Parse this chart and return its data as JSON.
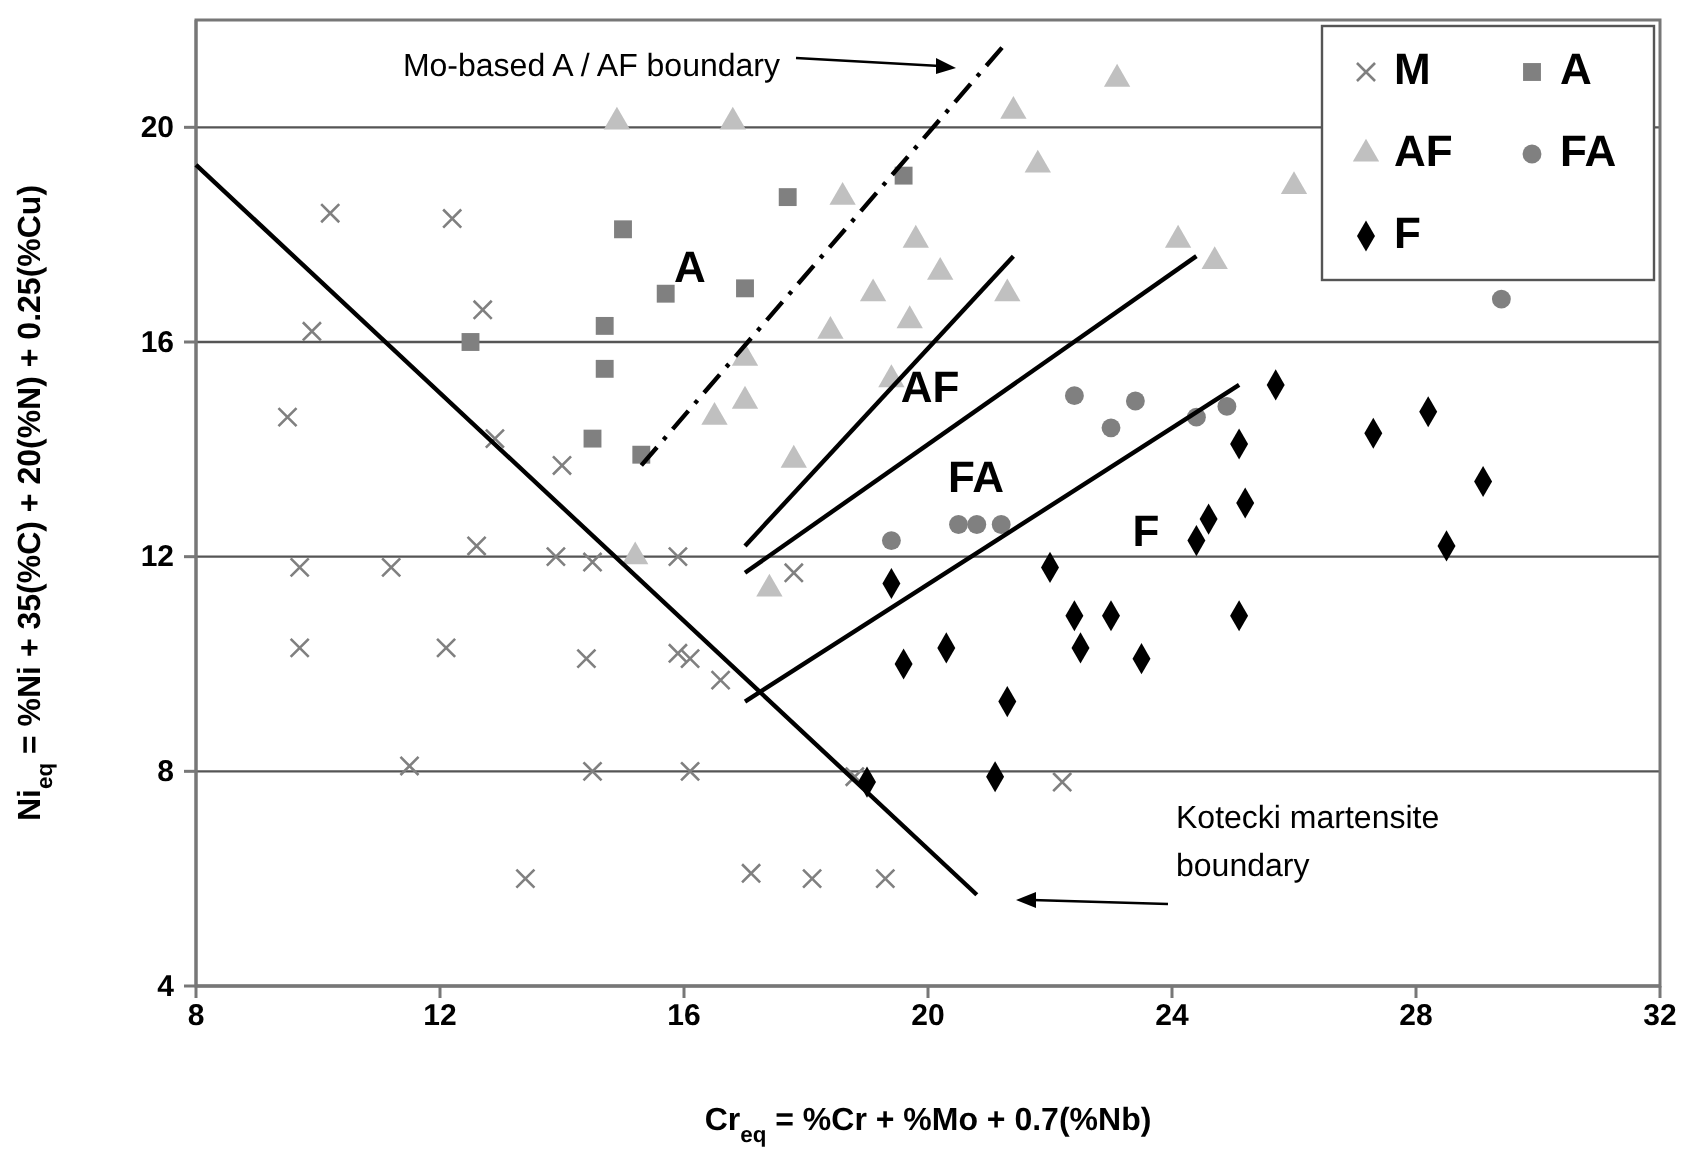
{
  "chart_data": {
    "type": "scatter",
    "xlabel": "Cr$_{eq}$ = %Cr + %Mo + 0.7(%Nb)",
    "ylabel": "Ni$_{eq}$ = %Ni + 35(%C) + 20(%N) + 0.25(%Cu)",
    "xlim": [
      8,
      32
    ],
    "xticks": [
      8,
      12,
      16,
      20,
      24,
      28,
      32
    ],
    "ylim": [
      4,
      22
    ],
    "yticks": [
      4,
      8,
      12,
      16,
      20
    ],
    "grid": "y",
    "legend": "top right",
    "series": [
      {
        "name": "M",
        "color": "#808080",
        "marker": "cross",
        "x": [
          10.2,
          12.2,
          12.7,
          9.9,
          9.5,
          12.9,
          14.0,
          9.7,
          11.2,
          12.6,
          13.9,
          14.5,
          15.9,
          9.7,
          12.1,
          14.4,
          15.9,
          16.1,
          11.5,
          14.5,
          16.1,
          13.4,
          16.6,
          17.8,
          18.8,
          22.2,
          17.1,
          18.1,
          19.3
        ],
        "values": [
          18.4,
          18.3,
          16.6,
          16.2,
          14.6,
          14.2,
          13.7,
          11.8,
          11.8,
          12.2,
          12.0,
          11.9,
          12.0,
          10.3,
          10.3,
          10.1,
          10.2,
          10.1,
          8.1,
          8.0,
          8.0,
          6.0,
          9.7,
          11.7,
          7.9,
          7.8,
          6.1,
          6.0,
          6.0
        ]
      },
      {
        "name": "A",
        "color": "#808080",
        "marker": "square",
        "x": [
          15.0,
          15.7,
          14.7,
          12.5,
          14.7,
          14.5,
          15.3,
          19.6,
          17.7,
          17.0
        ],
        "values": [
          18.1,
          16.9,
          16.3,
          16.0,
          15.5,
          14.2,
          13.9,
          19.1,
          18.7,
          17.0
        ]
      },
      {
        "name": "AF",
        "color": "#c0c0c0",
        "marker": "triangle",
        "x": [
          14.9,
          16.8,
          21.4,
          23.1,
          21.8,
          18.6,
          19.8,
          20.2,
          19.1,
          21.3,
          19.7,
          18.4,
          17.0,
          17.0,
          16.5,
          19.4,
          17.8,
          26.0,
          24.1,
          24.7,
          17.4,
          15.2
        ],
        "values": [
          20.1,
          20.1,
          20.3,
          20.9,
          19.3,
          18.7,
          17.9,
          17.3,
          16.9,
          16.9,
          16.4,
          16.2,
          15.7,
          14.9,
          14.6,
          15.3,
          13.8,
          18.9,
          17.9,
          17.5,
          11.4,
          12.0
        ]
      },
      {
        "name": "FA",
        "color": "#808080",
        "marker": "circle",
        "x": [
          22.4,
          23.4,
          23.0,
          24.4,
          24.9,
          29.4,
          19.4,
          20.5,
          20.8,
          21.2
        ],
        "values": [
          15.0,
          14.9,
          14.4,
          14.6,
          14.8,
          16.8,
          12.3,
          12.6,
          12.6,
          12.6
        ]
      },
      {
        "name": "F",
        "color": "#000000",
        "marker": "diamond",
        "x": [
          19.4,
          22.0,
          22.4,
          23.0,
          20.3,
          19.6,
          22.5,
          23.5,
          21.3,
          19.0,
          21.1,
          25.7,
          28.2,
          27.3,
          25.1,
          29.1,
          25.2,
          24.6,
          24.4,
          28.5,
          25.1
        ],
        "values": [
          11.5,
          11.8,
          10.9,
          10.9,
          10.3,
          10.0,
          10.3,
          10.1,
          9.3,
          7.8,
          7.9,
          15.2,
          14.7,
          14.3,
          14.1,
          13.4,
          13.0,
          12.7,
          12.3,
          12.2,
          10.9
        ]
      },
      {
        "type": "line",
        "color": "#000000",
        "line_style": "solid",
        "x": [
          8.0,
          20.8
        ],
        "values": [
          19.3,
          5.7
        ]
      },
      {
        "type": "line",
        "color": "#000000",
        "line_style": "dashdot",
        "x": [
          15.3,
          21.3
        ],
        "values": [
          13.7,
          21.6
        ]
      },
      {
        "type": "line",
        "color": "#000000",
        "line_style": "solid",
        "x": [
          17.0,
          21.4
        ],
        "values": [
          12.2,
          17.6
        ]
      },
      {
        "type": "line",
        "color": "#000000",
        "line_style": "solid",
        "x": [
          17.0,
          24.4
        ],
        "values": [
          11.7,
          17.6
        ]
      },
      {
        "type": "line",
        "color": "#000000",
        "line_style": "solid",
        "x": [
          17.0,
          25.1
        ],
        "values": [
          9.3,
          15.2
        ]
      }
    ],
    "annotations": [
      "A",
      "AF",
      "FA",
      "F",
      "Mo-based A / AF boundary",
      "Kotecki martensite boundary"
    ]
  }
}
